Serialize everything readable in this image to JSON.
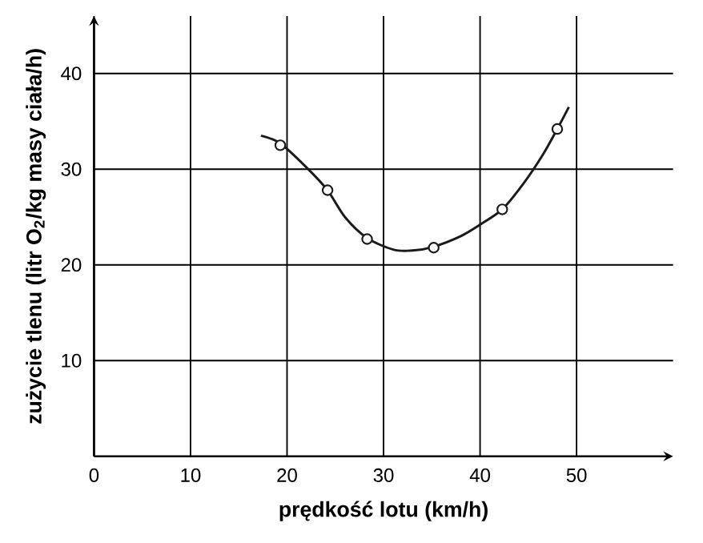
{
  "chart_data": {
    "type": "line",
    "xlabel": "prędkość lotu (km/h)",
    "ylabel": "zużycie tlenu (litr O$_{2}$/kg masy ciała/h)",
    "xlim": [
      0,
      60
    ],
    "ylim": [
      0,
      46
    ],
    "xticks": [
      0,
      10,
      20,
      30,
      40,
      50
    ],
    "yticks": [
      10,
      20,
      30,
      40
    ],
    "grid": true,
    "series": [
      {
        "color": "#1a1a1a",
        "line_style": "solid",
        "marker": "none",
        "x": [
          17.3,
          19.3,
          22,
          24.2,
          26,
          28.3,
          31,
          33,
          35.2,
          38,
          40,
          42.3,
          44.5,
          46.5,
          48,
          49.2
        ],
        "values": [
          33.5,
          32.7,
          30.2,
          27.8,
          25,
          22.8,
          21.6,
          21.5,
          21.9,
          23,
          24.2,
          25.8,
          28.5,
          31.5,
          34.2,
          36.5
        ]
      },
      {
        "type": "scatter",
        "color": "#1a1a1a",
        "marker": "circle",
        "x": [
          19.3,
          24.2,
          28.3,
          35.2,
          42.3,
          48
        ],
        "values": [
          32.5,
          27.8,
          22.7,
          21.8,
          25.8,
          34.2
        ]
      }
    ]
  }
}
